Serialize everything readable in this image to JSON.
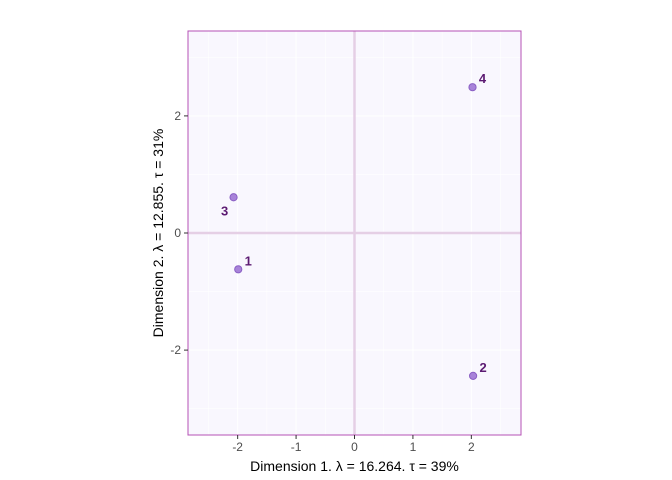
{
  "chart_data": {
    "type": "scatter",
    "xlabel": "Dimension 1.   λ = 16.264.  τ = 39%",
    "ylabel": "Dimension 2.   λ = 12.855.  τ = 31%",
    "xlim": [
      -2.85,
      2.85
    ],
    "ylim": [
      -3.45,
      3.45
    ],
    "x_ticks": [
      -2,
      -1,
      0,
      1,
      2
    ],
    "y_ticks": [
      -2,
      0,
      2
    ],
    "grid": true,
    "points": [
      {
        "label": "1",
        "x": -1.99,
        "y": -0.62
      },
      {
        "label": "2",
        "x": 2.03,
        "y": -2.44
      },
      {
        "label": "3",
        "x": -2.07,
        "y": 0.61
      },
      {
        "label": "4",
        "x": 2.02,
        "y": 2.49
      }
    ],
    "colors": {
      "panel_bg": "#f9f7fe",
      "panel_border": "#b550b5",
      "grid": "#ffffff",
      "zero_line": "#e5cfe5",
      "point_fill": "#a883d9",
      "point_stroke": "#8a5fc4",
      "label": "#5c1a72"
    }
  }
}
